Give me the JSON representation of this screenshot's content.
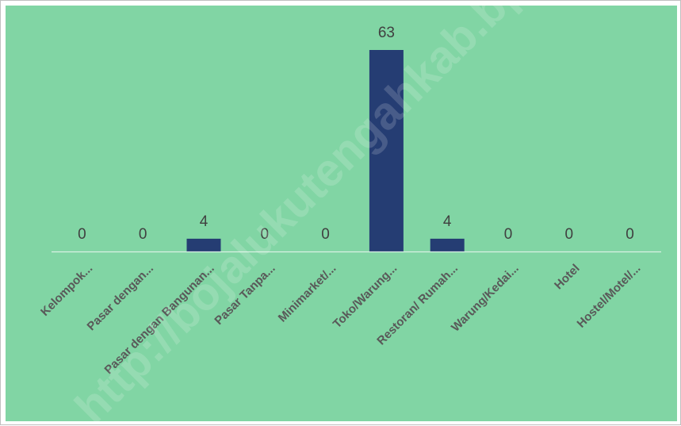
{
  "chart_data": {
    "type": "bar",
    "categories": [
      "Kelompok...",
      "Pasar dengan...",
      "Pasar dengan Bangunan...",
      "Pasar Tanpa...",
      "Minimarket/...",
      "Toko/Warung...",
      "Restoran/ Rumah...",
      "Warung/Kedai...",
      "Hotel",
      "Hostel/Motel/..."
    ],
    "values": [
      0,
      0,
      4,
      0,
      0,
      63,
      4,
      0,
      0,
      0
    ],
    "title": "",
    "xlabel": "",
    "ylabel": "",
    "ylim": [
      0,
      63
    ],
    "grid": false,
    "legend": "none",
    "data_labels": true,
    "colors": {
      "plot_background": "#81d5a4",
      "bar": "#253d73",
      "axis_line": "#d9f2e4",
      "tick_label": "#595959",
      "data_label": "#404040",
      "frame_border": "#bfbfbf"
    }
  },
  "watermark": "http://bojalukutengahkab.bps.go.id"
}
